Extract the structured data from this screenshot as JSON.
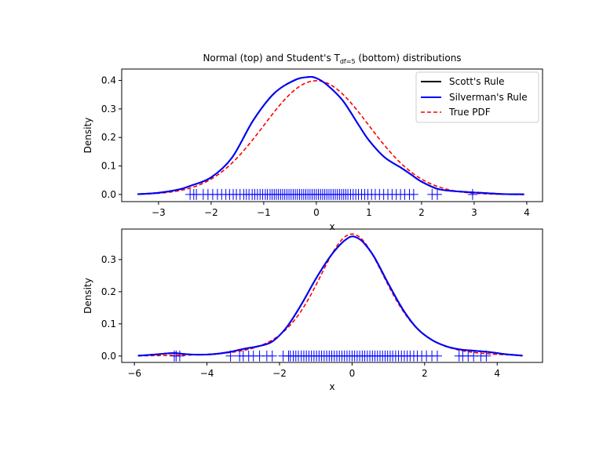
{
  "figure": {
    "title_main": "Normal (top) and Student's T",
    "title_sub": "df=5",
    "title_tail": " (bottom) distributions"
  },
  "colors": {
    "scott": "#000000",
    "silverman": "#0000ff",
    "true_pdf": "#ff0000",
    "rug": "#0000ff"
  },
  "chart_data": [
    {
      "type": "line",
      "name": "normal",
      "xlabel": "x",
      "ylabel": "Density",
      "xlim": [
        -3.7,
        4.3
      ],
      "ylim": [
        -0.025,
        0.44
      ],
      "xticks": [
        -3,
        -2,
        -1,
        0,
        1,
        2,
        3,
        4
      ],
      "yticks": [
        0.0,
        0.1,
        0.2,
        0.3,
        0.4
      ],
      "ytick_labels": [
        "0.0",
        "0.1",
        "0.2",
        "0.3",
        "0.4"
      ],
      "legend": {
        "placement": "top-right",
        "entries": [
          "Scott's Rule",
          "Silverman's Rule",
          "True PDF"
        ]
      },
      "x": [
        -3.4,
        -3.0,
        -2.6,
        -2.4,
        -2.0,
        -1.6,
        -1.2,
        -0.8,
        -0.4,
        -0.15,
        0.0,
        0.2,
        0.5,
        0.8,
        1.0,
        1.3,
        1.6,
        1.8,
        2.0,
        2.3,
        2.6,
        3.0,
        3.5,
        3.95
      ],
      "series": [
        {
          "name": "Scott's Rule",
          "values": [
            0.001,
            0.006,
            0.018,
            0.03,
            0.06,
            0.13,
            0.26,
            0.355,
            0.402,
            0.412,
            0.408,
            0.385,
            0.33,
            0.245,
            0.19,
            0.13,
            0.095,
            0.07,
            0.045,
            0.02,
            0.012,
            0.007,
            0.002,
            0.0005
          ]
        },
        {
          "name": "Silverman's Rule",
          "values": [
            0.001,
            0.006,
            0.018,
            0.03,
            0.06,
            0.13,
            0.26,
            0.355,
            0.402,
            0.412,
            0.408,
            0.385,
            0.33,
            0.245,
            0.19,
            0.13,
            0.095,
            0.07,
            0.045,
            0.02,
            0.012,
            0.007,
            0.002,
            0.0005
          ]
        },
        {
          "name": "True PDF",
          "function": "normal_pdf"
        }
      ],
      "rug": [
        -2.4,
        -2.33,
        -2.28,
        -2.15,
        -2.06,
        -1.97,
        -1.88,
        -1.8,
        -1.72,
        -1.65,
        -1.58,
        -1.52,
        -1.45,
        -1.38,
        -1.33,
        -1.28,
        -1.22,
        -1.17,
        -1.12,
        -1.07,
        -1.02,
        -0.97,
        -0.93,
        -0.88,
        -0.84,
        -0.8,
        -0.76,
        -0.72,
        -0.68,
        -0.64,
        -0.6,
        -0.56,
        -0.52,
        -0.48,
        -0.44,
        -0.4,
        -0.36,
        -0.32,
        -0.28,
        -0.24,
        -0.2,
        -0.16,
        -0.12,
        -0.08,
        -0.04,
        0.0,
        0.04,
        0.08,
        0.12,
        0.16,
        0.2,
        0.24,
        0.28,
        0.32,
        0.36,
        0.4,
        0.44,
        0.48,
        0.52,
        0.56,
        0.6,
        0.65,
        0.7,
        0.75,
        0.8,
        0.86,
        0.92,
        0.98,
        1.05,
        1.12,
        1.2,
        1.28,
        1.36,
        1.44,
        1.52,
        1.6,
        1.68,
        1.77,
        1.85,
        2.2,
        2.3,
        2.97
      ]
    },
    {
      "type": "line",
      "name": "student_t",
      "xlabel": "x",
      "ylabel": "Density",
      "xlim": [
        -6.35,
        5.25
      ],
      "ylim": [
        -0.02,
        0.395
      ],
      "xticks": [
        -6,
        -4,
        -2,
        0,
        2,
        4
      ],
      "yticks": [
        0.0,
        0.1,
        0.2,
        0.3
      ],
      "ytick_labels": [
        "0.0",
        "0.1",
        "0.2",
        "0.3"
      ],
      "x": [
        -5.9,
        -5.5,
        -5.2,
        -4.9,
        -4.6,
        -4.2,
        -3.8,
        -3.4,
        -3.0,
        -2.6,
        -2.2,
        -1.8,
        -1.4,
        -1.0,
        -0.6,
        -0.3,
        -0.1,
        0.0,
        0.1,
        0.3,
        0.6,
        1.0,
        1.4,
        1.8,
        2.2,
        2.6,
        3.0,
        3.4,
        3.8,
        4.2,
        4.7
      ],
      "series": [
        {
          "name": "Scott's Rule",
          "values": [
            0.001,
            0.004,
            0.007,
            0.009,
            0.006,
            0.004,
            0.006,
            0.012,
            0.022,
            0.03,
            0.045,
            0.09,
            0.16,
            0.24,
            0.31,
            0.35,
            0.368,
            0.372,
            0.37,
            0.355,
            0.31,
            0.225,
            0.145,
            0.085,
            0.05,
            0.03,
            0.02,
            0.016,
            0.012,
            0.006,
            0.001
          ]
        },
        {
          "name": "Silverman's Rule",
          "values": [
            0.001,
            0.004,
            0.007,
            0.009,
            0.006,
            0.004,
            0.006,
            0.012,
            0.022,
            0.03,
            0.045,
            0.09,
            0.16,
            0.24,
            0.31,
            0.35,
            0.368,
            0.372,
            0.37,
            0.355,
            0.31,
            0.225,
            0.145,
            0.085,
            0.05,
            0.03,
            0.02,
            0.016,
            0.012,
            0.006,
            0.001
          ]
        },
        {
          "name": "True PDF",
          "function": "student_t_pdf",
          "df": 5
        }
      ],
      "rug": [
        -4.9,
        -4.85,
        -4.75,
        -3.35,
        -3.1,
        -3.0,
        -2.85,
        -2.72,
        -2.55,
        -2.35,
        -2.2,
        -1.9,
        -1.75,
        -1.7,
        -1.62,
        -1.55,
        -1.48,
        -1.4,
        -1.33,
        -1.26,
        -1.19,
        -1.12,
        -1.05,
        -0.98,
        -0.91,
        -0.84,
        -0.77,
        -0.7,
        -0.63,
        -0.56,
        -0.49,
        -0.42,
        -0.35,
        -0.28,
        -0.21,
        -0.14,
        -0.07,
        0.0,
        0.07,
        0.14,
        0.21,
        0.28,
        0.35,
        0.42,
        0.49,
        0.56,
        0.63,
        0.7,
        0.77,
        0.84,
        0.91,
        0.98,
        1.05,
        1.12,
        1.2,
        1.28,
        1.36,
        1.44,
        1.52,
        1.6,
        1.7,
        1.8,
        1.92,
        2.05,
        2.2,
        2.35,
        2.95,
        3.05,
        3.2,
        3.35,
        3.55,
        3.7
      ]
    }
  ]
}
